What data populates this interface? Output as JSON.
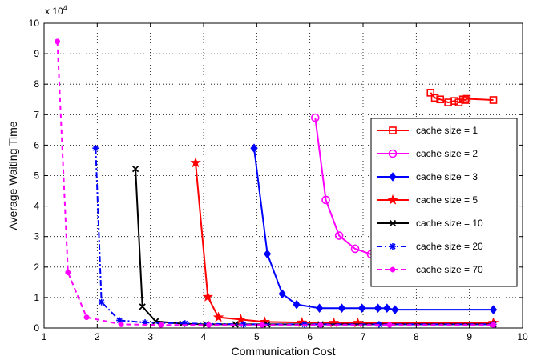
{
  "chart_data": {
    "type": "line",
    "title": "",
    "xlabel": "Communication Cost",
    "ylabel": "Average Waiting Time",
    "y_multiplier_label": "x 10",
    "y_multiplier_exponent": "4",
    "xlim": [
      1,
      10
    ],
    "ylim": [
      0,
      10
    ],
    "xticks": [
      "1",
      "2",
      "3",
      "4",
      "5",
      "6",
      "7",
      "8",
      "9",
      "10"
    ],
    "yticks": [
      "0",
      "1",
      "2",
      "3",
      "4",
      "5",
      "6",
      "7",
      "8",
      "9",
      "10"
    ],
    "grid": true,
    "legend_position": "right",
    "series": [
      {
        "name": "cache size = 1",
        "color": "#ff0000",
        "marker": "square",
        "dash": "solid",
        "x": [
          8.27,
          8.35,
          8.45,
          8.6,
          8.72,
          8.8,
          8.88,
          8.92,
          8.95,
          9.45
        ],
        "y": [
          7.72,
          7.55,
          7.5,
          7.4,
          7.45,
          7.4,
          7.5,
          7.48,
          7.52,
          7.48
        ]
      },
      {
        "name": "cache size = 2",
        "color": "#ff00ff",
        "marker": "circle",
        "dash": "solid",
        "x": [
          6.1,
          6.3,
          6.55,
          6.85,
          7.15,
          7.4,
          7.65,
          7.85,
          7.97,
          8.08,
          9.45
        ],
        "y": [
          6.9,
          4.2,
          3.03,
          2.6,
          2.42,
          2.32,
          2.35,
          2.35,
          2.35,
          2.3,
          2.32
        ]
      },
      {
        "name": "cache size = 3",
        "color": "#0000ff",
        "marker": "diamond",
        "dash": "solid",
        "x": [
          4.95,
          5.2,
          5.48,
          5.75,
          6.18,
          6.6,
          6.98,
          7.28,
          7.45,
          7.6,
          9.45
        ],
        "y": [
          5.9,
          2.43,
          1.12,
          0.77,
          0.65,
          0.65,
          0.65,
          0.65,
          0.65,
          0.6,
          0.6
        ]
      },
      {
        "name": "cache size = 5",
        "color": "#ff0000",
        "marker": "star",
        "dash": "solid",
        "x": [
          3.85,
          4.08,
          4.28,
          4.7,
          5.15,
          5.85,
          6.45,
          6.9,
          9.45
        ],
        "y": [
          5.42,
          1.02,
          0.35,
          0.28,
          0.2,
          0.18,
          0.17,
          0.17,
          0.17
        ]
      },
      {
        "name": "cache size = 10",
        "color": "#000000",
        "marker": "x",
        "dash": "solid",
        "x": [
          2.72,
          2.85,
          3.1,
          3.6,
          4.05,
          4.6,
          5.2,
          6.2,
          9.45
        ],
        "y": [
          5.22,
          0.7,
          0.22,
          0.14,
          0.12,
          0.12,
          0.12,
          0.12,
          0.12
        ]
      },
      {
        "name": "cache size = 20",
        "color": "#0000ff",
        "marker": "asterisk",
        "dash": "dashdot",
        "x": [
          1.97,
          2.08,
          2.42,
          2.9,
          3.65,
          4.75,
          5.9,
          7.3,
          9.45
        ],
        "y": [
          5.9,
          0.85,
          0.25,
          0.18,
          0.15,
          0.12,
          0.12,
          0.12,
          0.12
        ]
      },
      {
        "name": "cache size = 70",
        "color": "#ff00ff",
        "marker": "dot",
        "dash": "dashed",
        "x": [
          1.25,
          1.45,
          1.8,
          2.45,
          3.2,
          4.1,
          5.1,
          6.2,
          7.5,
          9.45
        ],
        "y": [
          9.4,
          1.82,
          0.35,
          0.12,
          0.1,
          0.1,
          0.1,
          0.1,
          0.1,
          0.1
        ]
      }
    ]
  }
}
